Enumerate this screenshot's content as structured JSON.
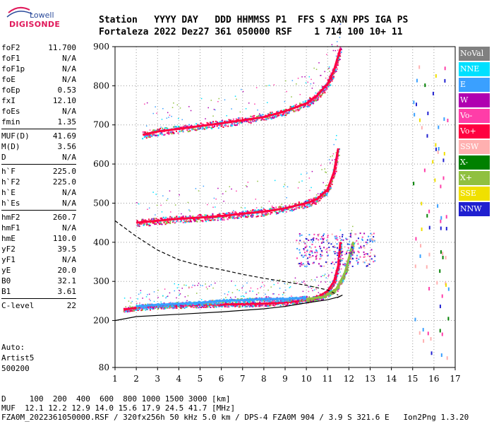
{
  "logo": {
    "line1": "Lowell",
    "line2": "DIGISONDE"
  },
  "header": {
    "line1": "Station   YYYY DAY   DDD HHMMSS P1  FFS S AXN PPS IGA PS",
    "line2": "Fortaleza 2022 Dez27 361 050000 RSF    1 714 100 10+ 11"
  },
  "params_groups": [
    [
      {
        "name": "foF2",
        "value": "11.700"
      },
      {
        "name": "foF1",
        "value": "N/A"
      },
      {
        "name": "foF1p",
        "value": "N/A"
      },
      {
        "name": "foE",
        "value": "N/A"
      },
      {
        "name": "foEp",
        "value": "0.53"
      },
      {
        "name": "fxI",
        "value": "12.10"
      },
      {
        "name": "foEs",
        "value": "N/A"
      },
      {
        "name": "fmin",
        "value": "1.35"
      }
    ],
    [
      {
        "name": "MUF(D)",
        "value": "41.69"
      },
      {
        "name": "M(D)",
        "value": "3.56"
      },
      {
        "name": "D",
        "value": "N/A"
      }
    ],
    [
      {
        "name": "h`F",
        "value": "225.0"
      },
      {
        "name": "h`F2",
        "value": "225.0"
      },
      {
        "name": "h`E",
        "value": "N/A"
      },
      {
        "name": "h`Es",
        "value": "N/A"
      }
    ],
    [
      {
        "name": "hmF2",
        "value": "260.7"
      },
      {
        "name": "hmF1",
        "value": "N/A"
      },
      {
        "name": "hmE",
        "value": "110.0"
      },
      {
        "name": "yF2",
        "value": "39.5"
      },
      {
        "name": "yF1",
        "value": "N/A"
      },
      {
        "name": "yE",
        "value": "20.0"
      },
      {
        "name": "B0",
        "value": "32.1"
      },
      {
        "name": "B1",
        "value": "3.61"
      }
    ],
    [
      {
        "name": "C-level",
        "value": "22"
      }
    ]
  ],
  "auto": {
    "line1": "Auto:",
    "line2": "Artist5",
    "line3": "500200"
  },
  "footer": {
    "line1": "D     100  200  400  600  800 1000 1500 3000 [km]",
    "line2": "MUF  12.1 12.2 12.9 14.0 15.6 17.9 24.5 41.7 [MHz]",
    "line3": "FZA0M_2022361050000.RSF / 320fx256h 50 kHz 5.0 km / DPS-4 FZA0M 904 / 3.9 S 321.6 E   Ion2Png 1.3.20"
  },
  "legend": [
    {
      "label": "NoVal",
      "color": "#808080"
    },
    {
      "label": "NNE",
      "color": "#00e0ff"
    },
    {
      "label": "E",
      "color": "#3aa0ff"
    },
    {
      "label": "W",
      "color": "#b000b0"
    },
    {
      "label": "Vo-",
      "color": "#ff3da8"
    },
    {
      "label": "Vo+",
      "color": "#ff0040"
    },
    {
      "label": "SSW",
      "color": "#ffb0b0"
    },
    {
      "label": "X-",
      "color": "#008000"
    },
    {
      "label": "X+",
      "color": "#90c040"
    },
    {
      "label": "SSE",
      "color": "#f0e000"
    },
    {
      "label": "NNW",
      "color": "#2020d0"
    }
  ],
  "chart_data": {
    "type": "scatter",
    "title": "",
    "xlabel": "",
    "ylabel": "",
    "xlim": [
      1,
      17
    ],
    "ylim": [
      80,
      900
    ],
    "x_scale": "linear",
    "y_scale": "linear",
    "x_ticks": [
      1,
      2,
      3,
      4,
      5,
      6,
      7,
      8,
      9,
      10,
      11,
      12,
      13,
      14,
      15,
      16,
      17
    ],
    "y_ticks": [
      80,
      200,
      300,
      400,
      500,
      600,
      700,
      800,
      900
    ],
    "grid": "dotted",
    "legend_position": "right",
    "series": [
      {
        "name": "Vo+",
        "color": "#ff0040",
        "points": [
          [
            1.4,
            228
          ],
          [
            2,
            232
          ],
          [
            3,
            236
          ],
          [
            4,
            238
          ],
          [
            5,
            240
          ],
          [
            6,
            241
          ],
          [
            7,
            242
          ],
          [
            8,
            243
          ],
          [
            9,
            246
          ],
          [
            10,
            252
          ],
          [
            10.6,
            262
          ],
          [
            11,
            275
          ],
          [
            11.3,
            300
          ],
          [
            11.5,
            340
          ],
          [
            11.6,
            400
          ]
        ]
      },
      {
        "name": "E",
        "color": "#3aa0ff",
        "points": [
          [
            2,
            236
          ],
          [
            3,
            240
          ],
          [
            4,
            243
          ],
          [
            5,
            245
          ],
          [
            6,
            250
          ],
          [
            7,
            252
          ],
          [
            8,
            255
          ],
          [
            9,
            255
          ],
          [
            10,
            258
          ]
        ]
      },
      {
        "name": "X+",
        "color": "#90c040",
        "points": [
          [
            10,
            255
          ],
          [
            10.8,
            260
          ],
          [
            11.4,
            280
          ],
          [
            11.8,
            320
          ],
          [
            12,
            360
          ],
          [
            12.2,
            400
          ]
        ]
      },
      {
        "name": "Vo+ (2nd hop)",
        "color": "#ff0040",
        "points": [
          [
            2,
            450
          ],
          [
            3,
            455
          ],
          [
            4,
            460
          ],
          [
            5,
            463
          ],
          [
            6,
            467
          ],
          [
            7,
            473
          ],
          [
            8,
            478
          ],
          [
            9,
            487
          ],
          [
            10,
            500
          ],
          [
            10.5,
            510
          ],
          [
            11,
            535
          ],
          [
            11.3,
            580
          ],
          [
            11.5,
            640
          ]
        ]
      },
      {
        "name": "Vo+ (3rd hop)",
        "color": "#ff0040",
        "points": [
          [
            2.3,
            675
          ],
          [
            3,
            683
          ],
          [
            4,
            690
          ],
          [
            5,
            697
          ],
          [
            6,
            704
          ],
          [
            7,
            712
          ],
          [
            8,
            720
          ],
          [
            9,
            735
          ],
          [
            10,
            755
          ],
          [
            10.5,
            775
          ],
          [
            11,
            805
          ],
          [
            11.3,
            840
          ],
          [
            11.6,
            895
          ]
        ]
      }
    ],
    "profile_curves": [
      {
        "name": "profile-solid",
        "style": "solid",
        "points": [
          [
            1,
            200
          ],
          [
            2,
            210
          ],
          [
            4,
            216
          ],
          [
            6,
            222
          ],
          [
            8,
            230
          ],
          [
            9,
            236
          ],
          [
            10,
            245
          ],
          [
            11,
            253
          ],
          [
            11.5,
            260
          ],
          [
            11.7,
            265
          ],
          [
            11.45,
            258
          ]
        ]
      },
      {
        "name": "profile-dashed",
        "style": "dashed",
        "points": [
          [
            1,
            455
          ],
          [
            2,
            415
          ],
          [
            3,
            380
          ],
          [
            4,
            355
          ],
          [
            5,
            340
          ],
          [
            6,
            330
          ],
          [
            7,
            318
          ],
          [
            8,
            308
          ],
          [
            9,
            299
          ],
          [
            10,
            290
          ],
          [
            11,
            278
          ],
          [
            11.5,
            265
          ]
        ]
      }
    ]
  }
}
